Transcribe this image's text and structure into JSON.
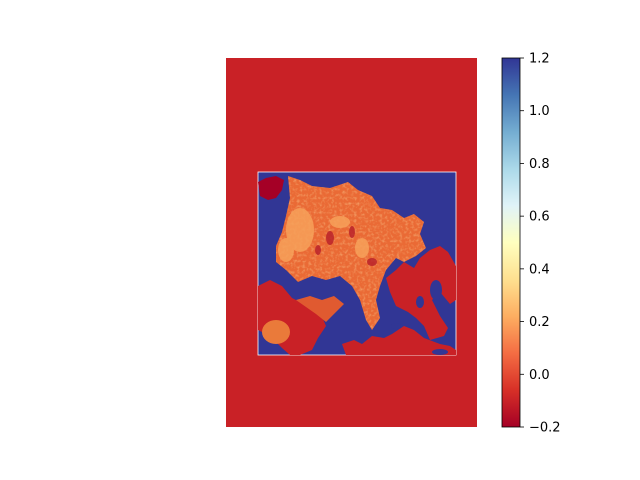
{
  "chart_data": {
    "type": "heatmap",
    "title": "",
    "xlabel": "",
    "ylabel": "",
    "axes_visible": false,
    "colormap": "RdYlBu",
    "colorbar": {
      "range": [
        -0.2,
        1.2
      ],
      "ticks": [
        -0.2,
        0.0,
        0.2,
        0.4,
        0.6,
        0.8,
        1.0,
        1.2
      ],
      "tick_labels": [
        "−0.2",
        "0.0",
        "0.2",
        "0.4",
        "0.6",
        "0.8",
        "1.0",
        "1.2"
      ]
    },
    "regions": [
      {
        "name": "outer background",
        "value": -0.05
      },
      {
        "name": "ocean / masked area",
        "value": 1.2
      },
      {
        "name": "central ice field",
        "value": 0.15
      },
      {
        "name": "high-value patches",
        "value": 0.3
      }
    ]
  },
  "colors": {
    "low": "#a50026",
    "background": "#c92126",
    "field": "#e8612f",
    "high": "#313695",
    "edge": "#ffffff"
  }
}
